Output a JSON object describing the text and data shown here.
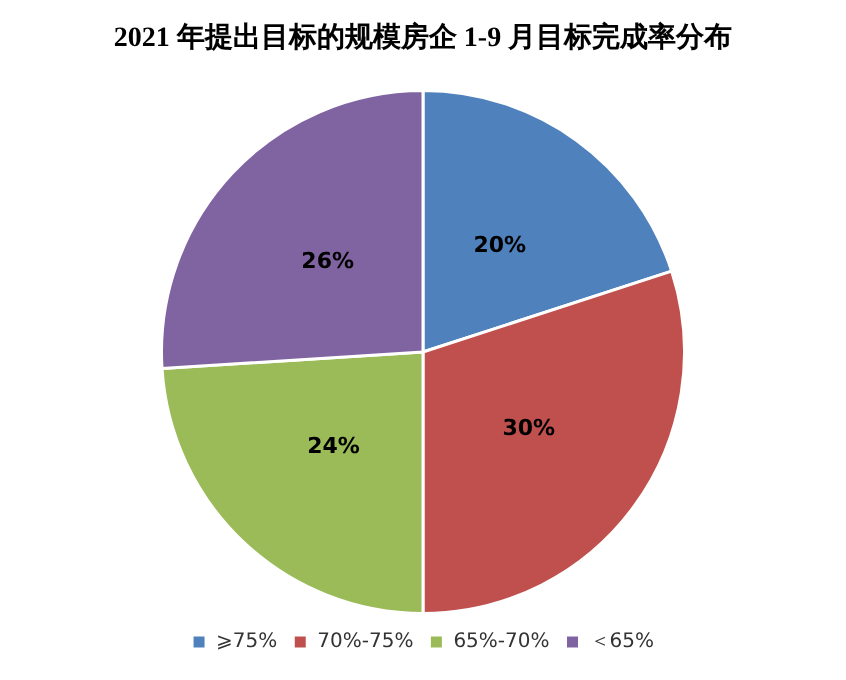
{
  "chart_data": {
    "type": "pie",
    "title": "2021 年提出目标的规模房企 1-9 月目标完成率分布",
    "categories": [
      "⩾75%",
      "70%-75%",
      "65%-70%",
      "＜65%"
    ],
    "values": [
      20,
      30,
      24,
      26
    ],
    "colors": [
      "#4f81bd",
      "#c0504d",
      "#9bbb59",
      "#8064a2"
    ],
    "value_labels": [
      "20%",
      "30%",
      "24%",
      "26%"
    ],
    "legend": "bottom"
  }
}
